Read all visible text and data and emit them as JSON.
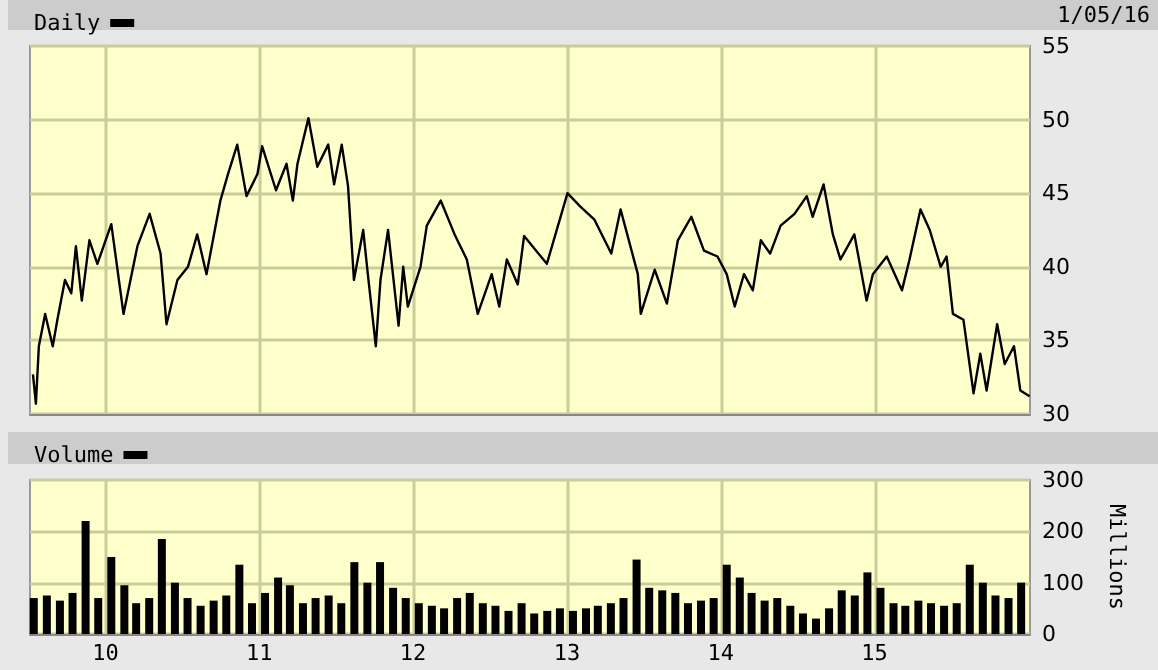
{
  "chart_data": [
    {
      "type": "line",
      "annotations": [
        "1/05/16"
      ],
      "legend": "top left",
      "grid": true,
      "tick_labels": "y",
      "marker": "none",
      "line_style": "solid",
      "xlim": [
        "2009-07-06",
        "2016-01-05"
      ],
      "xticks": [
        {
          "value": "2010-01-01",
          "label": null
        },
        {
          "value": "2011-01-01",
          "label": null
        },
        {
          "value": "2012-01-01",
          "label": null
        },
        {
          "value": "2013-01-01",
          "label": null
        },
        {
          "value": "2014-01-01",
          "label": null
        },
        {
          "value": "2015-01-01",
          "label": null
        }
      ],
      "ylim": [
        30,
        55
      ],
      "yticks": [
        30,
        35,
        40,
        45,
        50,
        55
      ],
      "x": [
        "2009-07-13",
        "2009-07-20",
        "2009-07-27",
        "2009-08-11",
        "2009-08-29",
        "2009-09-09",
        "2009-09-27",
        "2009-10-12",
        "2009-10-23",
        "2009-11-06",
        "2009-11-24",
        "2009-12-13",
        "2010-01-15",
        "2010-02-13",
        "2010-03-18",
        "2010-04-16",
        "2010-05-12",
        "2010-05-26",
        "2010-06-21",
        "2010-07-16",
        "2010-08-07",
        "2010-08-29",
        "2010-10-01",
        "2010-10-19",
        "2010-11-10",
        "2010-12-02",
        "2010-12-28",
        "2011-01-08",
        "2011-02-10",
        "2011-03-07",
        "2011-03-22",
        "2011-04-02",
        "2011-04-28",
        "2011-05-19",
        "2011-06-14",
        "2011-06-28",
        "2011-07-16",
        "2011-07-31",
        "2011-08-14",
        "2011-09-05",
        "2011-09-16",
        "2011-10-05",
        "2011-10-16",
        "2011-11-03",
        "2011-11-28",
        "2011-12-09",
        "2011-12-20",
        "2012-01-19",
        "2012-02-03",
        "2012-03-07",
        "2012-04-09",
        "2012-05-08",
        "2012-06-03",
        "2012-07-06",
        "2012-07-24",
        "2012-08-11",
        "2012-09-06",
        "2012-09-21",
        "2012-11-14",
        "2013-01-02",
        "2013-02-01",
        "2013-03-07",
        "2013-04-16",
        "2013-05-08",
        "2013-06-18",
        "2013-06-25",
        "2013-07-28",
        "2013-08-26",
        "2013-09-21",
        "2013-10-23",
        "2013-11-22",
        "2013-12-24",
        "2014-01-15",
        "2014-02-03",
        "2014-02-25",
        "2014-03-18",
        "2014-04-06",
        "2014-04-28",
        "2014-05-23",
        "2014-06-25",
        "2014-07-24",
        "2014-08-07",
        "2014-09-02",
        "2014-09-24",
        "2014-10-12",
        "2014-11-14",
        "2014-12-13",
        "2014-12-28",
        "2015-01-30",
        "2015-03-07",
        "2015-03-25",
        "2015-04-20",
        "2015-05-12",
        "2015-06-07",
        "2015-06-21",
        "2015-07-06",
        "2015-07-31",
        "2015-08-24",
        "2015-09-09",
        "2015-09-24",
        "2015-10-19",
        "2015-11-06",
        "2015-11-28",
        "2015-12-13",
        "2016-01-04"
      ],
      "series": [
        {
          "name": "Daily",
          "color": "#000000",
          "values": [
            32.7,
            30.7,
            34.6,
            36.8,
            34.6,
            36.4,
            39.1,
            38.2,
            41.4,
            37.7,
            41.8,
            40.2,
            42.9,
            36.8,
            41.4,
            43.6,
            40.9,
            36.1,
            39.1,
            40,
            42.2,
            39.5,
            44.5,
            46.3,
            48.3,
            44.8,
            46.3,
            48.2,
            45.2,
            47,
            44.5,
            47,
            50.1,
            46.8,
            48.3,
            45.6,
            48.3,
            45.5,
            39.1,
            42.5,
            39.5,
            34.6,
            39.1,
            42.5,
            36,
            40,
            37.3,
            40,
            42.8,
            44.5,
            42.2,
            40.5,
            36.8,
            39.5,
            37.3,
            40.5,
            38.8,
            42.1,
            40.2,
            45,
            44.1,
            43.2,
            40.9,
            43.9,
            39.5,
            36.8,
            39.8,
            37.5,
            41.8,
            43.4,
            41.1,
            40.7,
            39.5,
            37.3,
            39.5,
            38.4,
            41.8,
            40.9,
            42.8,
            43.6,
            44.8,
            43.4,
            45.6,
            42.2,
            40.5,
            42.2,
            37.7,
            39.5,
            40.7,
            38.4,
            40.5,
            43.9,
            42.5,
            40,
            40.7,
            36.8,
            36.4,
            31.4,
            34.1,
            31.6,
            36.1,
            33.4,
            34.6,
            31.6,
            31.2
          ]
        }
      ]
    },
    {
      "type": "bar",
      "legend": "top left",
      "grid": true,
      "ylabel": "Millions",
      "xlim": [
        "2009-07-06",
        "2016-01-05"
      ],
      "xticks": [
        {
          "value": "2010-01-01",
          "label": "10"
        },
        {
          "value": "2011-01-01",
          "label": "11"
        },
        {
          "value": "2012-01-01",
          "label": "12"
        },
        {
          "value": "2013-01-01",
          "label": "13"
        },
        {
          "value": "2014-01-01",
          "label": "14"
        },
        {
          "value": "2015-01-01",
          "label": "15"
        }
      ],
      "ylim": [
        0,
        300
      ],
      "yticks": [
        0,
        100,
        200,
        300
      ],
      "x": [
        "2009-07-15",
        "2009-08-15",
        "2009-09-15",
        "2009-10-15",
        "2009-11-15",
        "2009-12-15",
        "2010-01-15",
        "2010-02-15",
        "2010-03-15",
        "2010-04-15",
        "2010-05-15",
        "2010-06-15",
        "2010-07-15",
        "2010-08-15",
        "2010-09-15",
        "2010-10-15",
        "2010-11-15",
        "2010-12-15",
        "2011-01-15",
        "2011-02-15",
        "2011-03-15",
        "2011-04-15",
        "2011-05-15",
        "2011-06-15",
        "2011-07-15",
        "2011-08-15",
        "2011-09-15",
        "2011-10-15",
        "2011-11-15",
        "2011-12-15",
        "2012-01-15",
        "2012-02-15",
        "2012-03-15",
        "2012-04-15",
        "2012-05-15",
        "2012-06-15",
        "2012-07-15",
        "2012-08-15",
        "2012-09-15",
        "2012-10-15",
        "2012-11-15",
        "2012-12-15",
        "2013-01-15",
        "2013-02-15",
        "2013-03-15",
        "2013-04-15",
        "2013-05-15",
        "2013-06-15",
        "2013-07-15",
        "2013-08-15",
        "2013-09-15",
        "2013-10-15",
        "2013-11-15",
        "2013-12-15",
        "2014-01-15",
        "2014-02-15",
        "2014-03-15",
        "2014-04-15",
        "2014-05-15",
        "2014-06-15",
        "2014-07-15",
        "2014-08-15",
        "2014-09-15",
        "2014-10-15",
        "2014-11-15",
        "2014-12-15",
        "2015-01-15",
        "2015-02-15",
        "2015-03-15",
        "2015-04-15",
        "2015-05-15",
        "2015-06-15",
        "2015-07-15",
        "2015-08-15",
        "2015-09-15",
        "2015-10-15",
        "2015-11-15",
        "2015-12-15"
      ],
      "series": [
        {
          "name": "Volume",
          "color": "#000000",
          "values": [
            70,
            75,
            65,
            80,
            220,
            70,
            150,
            95,
            60,
            70,
            185,
            100,
            70,
            55,
            65,
            75,
            135,
            60,
            80,
            110,
            95,
            60,
            70,
            75,
            60,
            140,
            100,
            140,
            90,
            70,
            60,
            55,
            50,
            70,
            80,
            60,
            55,
            45,
            60,
            40,
            45,
            50,
            45,
            50,
            55,
            60,
            70,
            145,
            90,
            85,
            80,
            60,
            65,
            70,
            135,
            110,
            80,
            65,
            70,
            55,
            40,
            30,
            50,
            85,
            75,
            120,
            90,
            60,
            55,
            65,
            60,
            55,
            60,
            135,
            100,
            75,
            70,
            100
          ]
        }
      ]
    }
  ]
}
